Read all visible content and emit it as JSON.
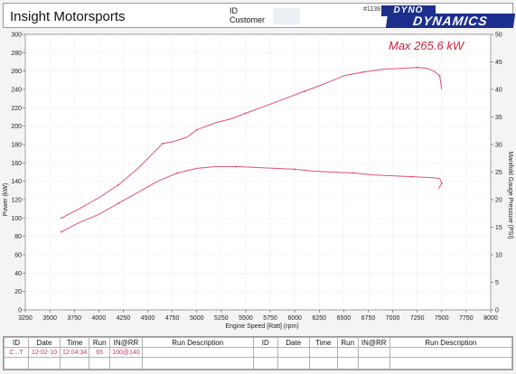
{
  "header": {
    "company": "Insight Motorsports",
    "id_label": "ID",
    "customer_label": "Customer",
    "record_number": "#1139",
    "logo_top": "DYNO",
    "logo_bottom": "DYNAMICS"
  },
  "chart_data": {
    "type": "line",
    "annotation": "Max 265.6 kW",
    "xlabel": "Engine Speed [Ratt] (rpm)",
    "ylabel": "Power (kW)",
    "y2label": "Manifold Gauge Pressure (PSI)",
    "xlim": [
      3250,
      8000
    ],
    "ylim": [
      0,
      300
    ],
    "y2lim": [
      0,
      50
    ],
    "x_ticks": [
      "3250",
      "3500",
      "3750",
      "4000",
      "4250",
      "4500",
      "4750",
      "5000",
      "5250",
      "5500",
      "5750",
      "6000",
      "6250",
      "6500",
      "6750",
      "7000",
      "7250",
      "7500",
      "7750",
      "8000"
    ],
    "y_ticks": [
      "0",
      "20",
      "40",
      "60",
      "80",
      "100",
      "120",
      "140",
      "160",
      "180",
      "200",
      "220",
      "240",
      "260",
      "280",
      "300"
    ],
    "y2_ticks": [
      "0",
      "5",
      "10",
      "15",
      "20",
      "25",
      "30",
      "35",
      "40",
      "45",
      "50"
    ],
    "grid": true,
    "colors": {
      "power": "#e05070",
      "pressure": "#e05070",
      "annotation": "#d02040"
    },
    "series": [
      {
        "axis": "left",
        "x": [
          3620,
          3800,
          4000,
          4200,
          4400,
          4550,
          4650,
          4750,
          4900,
          5000,
          5200,
          5350,
          5500,
          5700,
          5900,
          6100,
          6300,
          6500,
          6700,
          6900,
          7100,
          7250,
          7350,
          7420,
          7480,
          7500
        ],
        "values": [
          100,
          110,
          122,
          136,
          154,
          170,
          181,
          183,
          188,
          196,
          204,
          208,
          214,
          222,
          230,
          238,
          246,
          255,
          259,
          262,
          263,
          264,
          263,
          260,
          255,
          240
        ]
      },
      {
        "axis": "left",
        "x": [
          3620,
          3800,
          4000,
          4200,
          4400,
          4600,
          4800,
          5000,
          5200,
          5400,
          5600,
          5800,
          6000,
          6200,
          6400,
          6600,
          6800,
          7000,
          7200,
          7400,
          7480,
          7500,
          7470
        ],
        "values": [
          85,
          95,
          104,
          116,
          128,
          140,
          149,
          154,
          156,
          156,
          155,
          154,
          153,
          151,
          150,
          149,
          147,
          146,
          145,
          144,
          143,
          138,
          132
        ]
      }
    ]
  },
  "table": {
    "headers": [
      "ID",
      "Date",
      "Time",
      "Run",
      "IN@RR",
      "Run Description",
      "ID",
      "Date",
      "Time",
      "Run",
      "IN@RR",
      "Run Description"
    ],
    "rows": [
      [
        "C...T",
        "12-02-10",
        "12:04:34",
        "65",
        "100@140",
        "",
        "",
        "",
        "",
        "",
        "",
        ""
      ]
    ]
  }
}
